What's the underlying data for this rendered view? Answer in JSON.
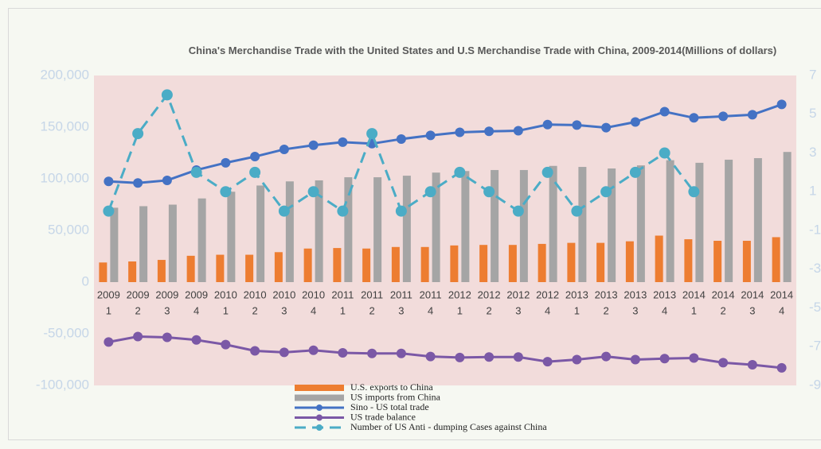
{
  "chart_data": {
    "type": "bar",
    "title": "China's Merchandise Trade with the United States and U.S Merchandise Trade with China, 2009-2014(Millions of dollars)",
    "categories": [
      [
        "2009",
        "1"
      ],
      [
        "2009",
        "2"
      ],
      [
        "2009",
        "3"
      ],
      [
        "2009",
        "4"
      ],
      [
        "2010",
        "1"
      ],
      [
        "2010",
        "2"
      ],
      [
        "2010",
        "3"
      ],
      [
        "2010",
        "4"
      ],
      [
        "2011",
        "1"
      ],
      [
        "2011",
        "2"
      ],
      [
        "2011",
        "3"
      ],
      [
        "2011",
        "4"
      ],
      [
        "2012",
        "1"
      ],
      [
        "2012",
        "2"
      ],
      [
        "2012",
        "3"
      ],
      [
        "2012",
        "4"
      ],
      [
        "2013",
        "1"
      ],
      [
        "2013",
        "2"
      ],
      [
        "2013",
        "3"
      ],
      [
        "2013",
        "4"
      ],
      [
        "2014",
        "1"
      ],
      [
        "2014",
        "2"
      ],
      [
        "2014",
        "3"
      ],
      [
        "2014",
        "4"
      ]
    ],
    "series": [
      {
        "name": "U.S. exports to China",
        "type": "bar",
        "color": "#ed7d31",
        "values": [
          19000,
          20000,
          21500,
          25500,
          26500,
          26500,
          29000,
          32500,
          33000,
          32500,
          34000,
          34000,
          35500,
          36000,
          36000,
          37000,
          38000,
          38000,
          39500,
          45000,
          41500,
          40000,
          40000,
          43500
        ]
      },
      {
        "name": "US imports from China",
        "type": "bar",
        "color": "#a5a5a5",
        "values": [
          72000,
          73500,
          75000,
          81000,
          87500,
          93500,
          97500,
          98500,
          101500,
          101500,
          103000,
          106000,
          107500,
          108500,
          108500,
          112500,
          111500,
          110000,
          113000,
          118000,
          115500,
          118500,
          120000,
          126000
        ]
      },
      {
        "name": "Sino - US total trade",
        "type": "line",
        "color": "#4472c4",
        "values": [
          97500,
          96000,
          98500,
          108500,
          115500,
          121500,
          128500,
          132500,
          135500,
          134000,
          138500,
          142000,
          145000,
          146000,
          146500,
          152500,
          152000,
          149500,
          155000,
          165000,
          159000,
          160500,
          162000,
          172000
        ]
      },
      {
        "name": "US trade balance",
        "type": "line",
        "color": "#7b58a6",
        "values": [
          -58000,
          -52700,
          -53500,
          -56000,
          -60500,
          -66500,
          -68000,
          -66000,
          -68500,
          -69000,
          -69000,
          -72000,
          -73000,
          -72500,
          -72500,
          -77000,
          -75000,
          -72000,
          -75000,
          -74000,
          -73500,
          -78000,
          -80000,
          -83000
        ]
      },
      {
        "name": "Number of US Anti - dumping Cases against China",
        "type": "line",
        "color": "#4bacc6",
        "dashed": true,
        "axis": "y2",
        "values": [
          0,
          4,
          6,
          2,
          1,
          2,
          0,
          1,
          0,
          4,
          0,
          1,
          2,
          1,
          0,
          2,
          0,
          1,
          2,
          3,
          1,
          null,
          null,
          null
        ]
      }
    ],
    "ylim": [
      -100000,
      200000
    ],
    "yticks": [
      {
        "value": -100000,
        "label": "-100,000"
      },
      {
        "value": -50000,
        "label": "-50,000"
      },
      0,
      {
        "value": 50000,
        "label": "50,000"
      },
      {
        "value": 100000,
        "label": "100,000"
      },
      {
        "value": 150000,
        "label": "150,000"
      },
      {
        "value": 200000,
        "label": "200,000"
      }
    ],
    "y2lim": [
      -9,
      7
    ],
    "y2ticks": [
      -9,
      -7,
      -5,
      -3,
      -1,
      1,
      3,
      5,
      7
    ],
    "grid": false,
    "legend": "bottom"
  }
}
